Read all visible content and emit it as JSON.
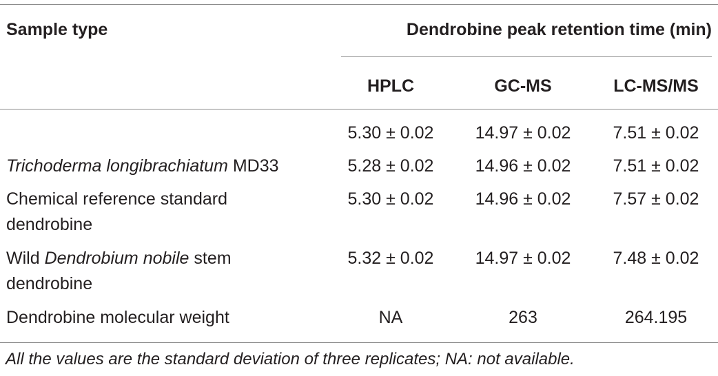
{
  "table": {
    "header_sample_type": "Sample type",
    "header_group": "Dendrobine peak retention time (min)",
    "columns": [
      "HPLC",
      "GC-MS",
      "LC-MS/MS"
    ],
    "rows": [
      {
        "label_parts": [],
        "values": [
          "5.30 ± 0.02",
          "14.97 ± 0.02",
          "7.51 ± 0.02"
        ]
      },
      {
        "label_parts": [
          {
            "text": "Trichoderma longibrachiatum",
            "italic": true
          },
          {
            "text": " MD33",
            "italic": false
          }
        ],
        "values": [
          "5.28 ± 0.02",
          "14.96 ± 0.02",
          "7.51 ± 0.02"
        ]
      },
      {
        "label_parts": [
          {
            "text": "Chemical reference standard",
            "italic": false
          },
          {
            "text": "dendrobine",
            "italic": false,
            "newline": true
          }
        ],
        "values": [
          "5.30 ± 0.02",
          "14.96 ± 0.02",
          "7.57 ± 0.02"
        ]
      },
      {
        "label_parts": [
          {
            "text": "Wild ",
            "italic": false
          },
          {
            "text": "Dendrobium nobile",
            "italic": true
          },
          {
            "text": " stem",
            "italic": false
          },
          {
            "text": "dendrobine",
            "italic": false,
            "newline": true
          }
        ],
        "values": [
          "5.32 ± 0.02",
          "14.97 ± 0.02",
          "7.48 ± 0.02"
        ]
      },
      {
        "label_parts": [
          {
            "text": "Dendrobine molecular weight",
            "italic": false
          }
        ],
        "values": [
          "NA",
          "263",
          "264.195"
        ]
      }
    ],
    "footnote": "All the values are the standard deviation of three replicates; NA: not available."
  }
}
